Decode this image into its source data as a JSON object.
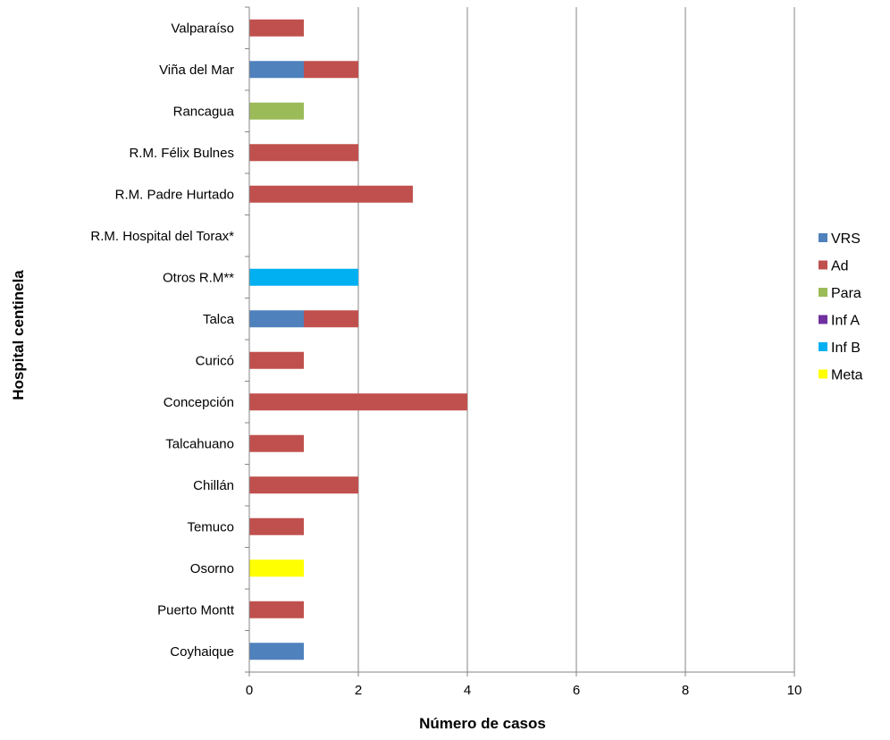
{
  "chart_data": {
    "type": "bar",
    "orientation": "horizontal",
    "stacked": true,
    "xlabel": "Número de casos",
    "ylabel": "Hospital centinela",
    "xlim": [
      0,
      10
    ],
    "xticks": [
      0,
      2,
      4,
      6,
      8,
      10
    ],
    "grid": "vertical",
    "legend_position": "right",
    "categories": [
      "Valparaíso",
      "Viña del Mar",
      "Rancagua",
      "R.M. Félix Bulnes",
      "R.M. Padre Hurtado",
      "R.M. Hospital del Torax*",
      "Otros R.M**",
      "Talca",
      "Curicó",
      "Concepción",
      "Talcahuano",
      "Chillán",
      "Temuco",
      "Osorno",
      "Puerto Montt",
      "Coyhaique"
    ],
    "series": [
      {
        "name": "VRS",
        "color": "#4F81BD",
        "values": [
          0,
          1,
          0,
          0,
          0,
          0,
          0,
          1,
          0,
          0,
          0,
          0,
          0,
          0,
          0,
          1
        ]
      },
      {
        "name": "Ad",
        "color": "#C0504D",
        "values": [
          1,
          1,
          0,
          2,
          3,
          0,
          0,
          1,
          1,
          4,
          1,
          2,
          1,
          0,
          1,
          0
        ]
      },
      {
        "name": "Para",
        "color": "#9BBB59",
        "values": [
          0,
          0,
          1,
          0,
          0,
          0,
          0,
          0,
          0,
          0,
          0,
          0,
          0,
          0,
          0,
          0
        ]
      },
      {
        "name": "Inf A",
        "color": "#7030A0",
        "values": [
          0,
          0,
          0,
          0,
          0,
          0,
          0,
          0,
          0,
          0,
          0,
          0,
          0,
          0,
          0,
          0
        ]
      },
      {
        "name": "Inf B",
        "color": "#00B0F0",
        "values": [
          0,
          0,
          0,
          0,
          0,
          0,
          2,
          0,
          0,
          0,
          0,
          0,
          0,
          0,
          0,
          0
        ]
      },
      {
        "name": "Meta",
        "color": "#FFFF00",
        "values": [
          0,
          0,
          0,
          0,
          0,
          0,
          0,
          0,
          0,
          0,
          0,
          0,
          0,
          1,
          0,
          0
        ]
      }
    ]
  }
}
